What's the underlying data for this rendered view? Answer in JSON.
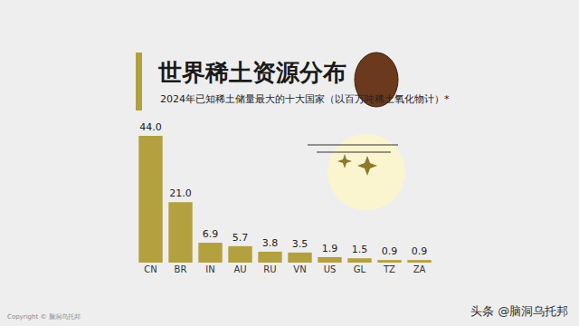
{
  "chart_data": {
    "type": "bar",
    "title": "世界稀土资源分布",
    "subtitle": "2024年已知稀土储量最大的十大国家（以百万吨稀土氧化物计）*",
    "categories": [
      "CN",
      "BR",
      "IN",
      "AU",
      "RU",
      "VN",
      "US",
      "GL",
      "TZ",
      "ZA"
    ],
    "values": [
      44.0,
      21.0,
      6.9,
      5.7,
      3.8,
      3.5,
      1.9,
      1.5,
      0.9,
      0.9
    ],
    "value_labels": [
      "44.0",
      "21.0",
      "6.9",
      "5.7",
      "3.8",
      "3.5",
      "1.9",
      "1.5",
      "0.9",
      "0.9"
    ],
    "color": "#b3a03f",
    "ylim": [
      0,
      44
    ],
    "data_labels": true,
    "tick_labels": "x",
    "grid": false,
    "annotations": [
      "Copyright © 脑洞乌托邦",
      "头条 @脑洞乌托邦"
    ]
  }
}
